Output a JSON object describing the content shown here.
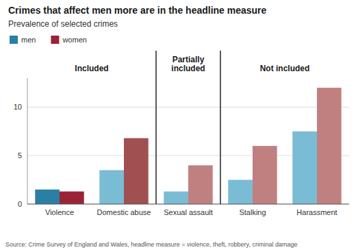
{
  "chart_data": {
    "type": "bar",
    "title": "Crimes that affect men more are in the headline measure",
    "subtitle": "Prevalence of selected crimes",
    "source": "Source: Crime Survey of England and Wales, headline measure = violence, theft, robbery, criminal damage",
    "categories": [
      "Violence",
      "Domestic abuse",
      "Sexual assault",
      "Stalking",
      "Harassment"
    ],
    "series": [
      {
        "name": "men",
        "color": "#2a7fa5",
        "colors": [
          "#2a7fa5",
          "#7bbcd5",
          "#7bbcd5",
          "#7bbcd5",
          "#7bbcd5"
        ],
        "values": [
          1.5,
          3.5,
          1.3,
          2.5,
          7.5
        ]
      },
      {
        "name": "women",
        "color": "#9b2335",
        "colors": [
          "#9b2335",
          "#a05050",
          "#c08080",
          "#c08080",
          "#c08080"
        ],
        "values": [
          1.3,
          6.8,
          4.0,
          6.0,
          12.0
        ]
      }
    ],
    "sections": [
      {
        "label": "Included",
        "categories": [
          "Violence",
          "Domestic abuse"
        ]
      },
      {
        "label": "Partially\nincluded",
        "categories": [
          "Sexual assault"
        ]
      },
      {
        "label": "Not included",
        "categories": [
          "Stalking",
          "Harassment"
        ]
      }
    ],
    "ylim": [
      0,
      13
    ],
    "yticks": [
      0,
      5,
      10
    ],
    "grid": true,
    "legend": "top left"
  }
}
